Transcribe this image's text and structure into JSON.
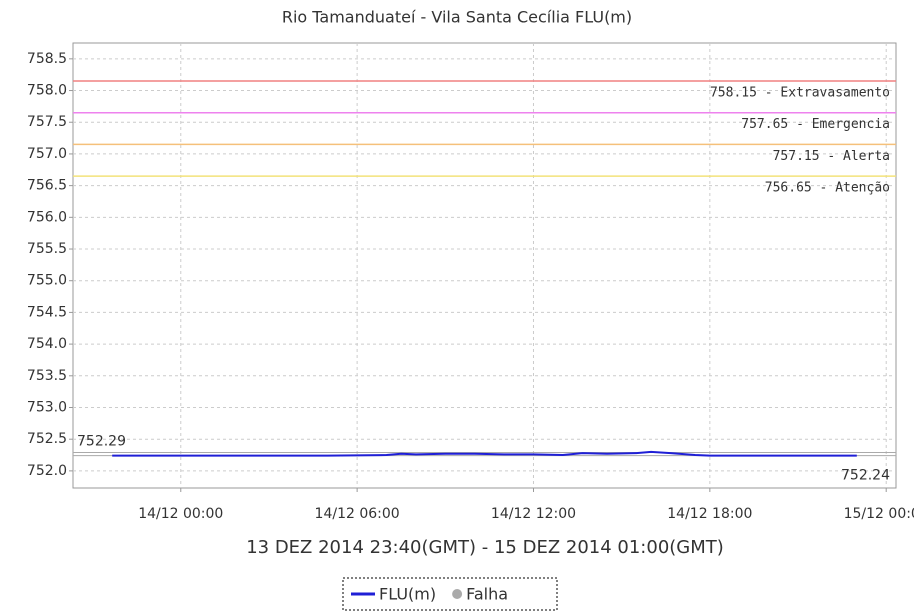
{
  "chart_data": {
    "type": "line",
    "title": "Rio Tamanduateí - Vila Santa Cecília FLU(m)",
    "x_label": "13 DEZ 2014 23:40(GMT) - 15 DEZ 2014 01:00(GMT)",
    "x": [
      "2014-12-13T21:40",
      "2014-12-13T23:00",
      "2014-12-14T01:00",
      "2014-12-14T03:00",
      "2014-12-14T05:00",
      "2014-12-14T07:00",
      "2014-12-14T07:30",
      "2014-12-14T08:00",
      "2014-12-14T09:00",
      "2014-12-14T10:00",
      "2014-12-14T11:00",
      "2014-12-14T12:00",
      "2014-12-14T13:00",
      "2014-12-14T13:40",
      "2014-12-14T14:30",
      "2014-12-14T15:30",
      "2014-12-14T16:00",
      "2014-12-14T16:40",
      "2014-12-14T17:30",
      "2014-12-14T18:00",
      "2014-12-14T20:00",
      "2014-12-14T22:00",
      "2014-12-14T23:00"
    ],
    "series": [
      {
        "name": "FLU(m)",
        "color": "#1f1fd6",
        "values": [
          752.24,
          752.24,
          752.24,
          752.24,
          752.24,
          752.25,
          752.27,
          752.26,
          752.27,
          752.27,
          752.26,
          752.26,
          752.25,
          752.28,
          752.27,
          752.28,
          752.3,
          752.28,
          752.25,
          752.24,
          752.24,
          752.24,
          752.24
        ]
      }
    ],
    "legend_extra": [
      {
        "name": "Falha",
        "color": "#aaaaaa"
      }
    ],
    "thresholds": [
      {
        "value": 758.15,
        "label": "758.15 - Extravasamento",
        "color": "#f08080"
      },
      {
        "value": 757.65,
        "label": "757.65 - Emergencia",
        "color": "#ee82ee"
      },
      {
        "value": 757.15,
        "label": "757.15 - Alerta",
        "color": "#f5c07a"
      },
      {
        "value": 756.65,
        "label": "756.65 - Atenção",
        "color": "#f3e27a"
      }
    ],
    "annotations": [
      {
        "value": 752.29,
        "label": "752.29",
        "side": "left"
      },
      {
        "value": 752.24,
        "label": "752.24",
        "side": "right"
      }
    ],
    "xlim": [
      "2014-12-13T20:20",
      "2014-12-15T00:20"
    ],
    "xticks": [
      {
        "value": "2014-12-14T00:00",
        "label": "14/12 00:00"
      },
      {
        "value": "2014-12-14T06:00",
        "label": "14/12 06:00"
      },
      {
        "value": "2014-12-14T12:00",
        "label": "14/12 12:00"
      },
      {
        "value": "2014-12-14T18:00",
        "label": "14/12 18:00"
      },
      {
        "value": "2014-12-15T00:00",
        "label": "15/12 00:00"
      }
    ],
    "ylim": [
      751.73,
      758.75
    ],
    "yticks": [
      {
        "value": 752,
        "label": "752.0"
      },
      752.5,
      {
        "value": 753,
        "label": "753.0"
      },
      753.5,
      {
        "value": 754,
        "label": "754.0"
      },
      754.5,
      {
        "value": 755,
        "label": "755.0"
      },
      755.5,
      {
        "value": 756,
        "label": "756.0"
      },
      756.5,
      {
        "value": 757,
        "label": "757.0"
      },
      757.5,
      {
        "value": 758,
        "label": "758.0"
      },
      758.5
    ],
    "grid": true
  }
}
